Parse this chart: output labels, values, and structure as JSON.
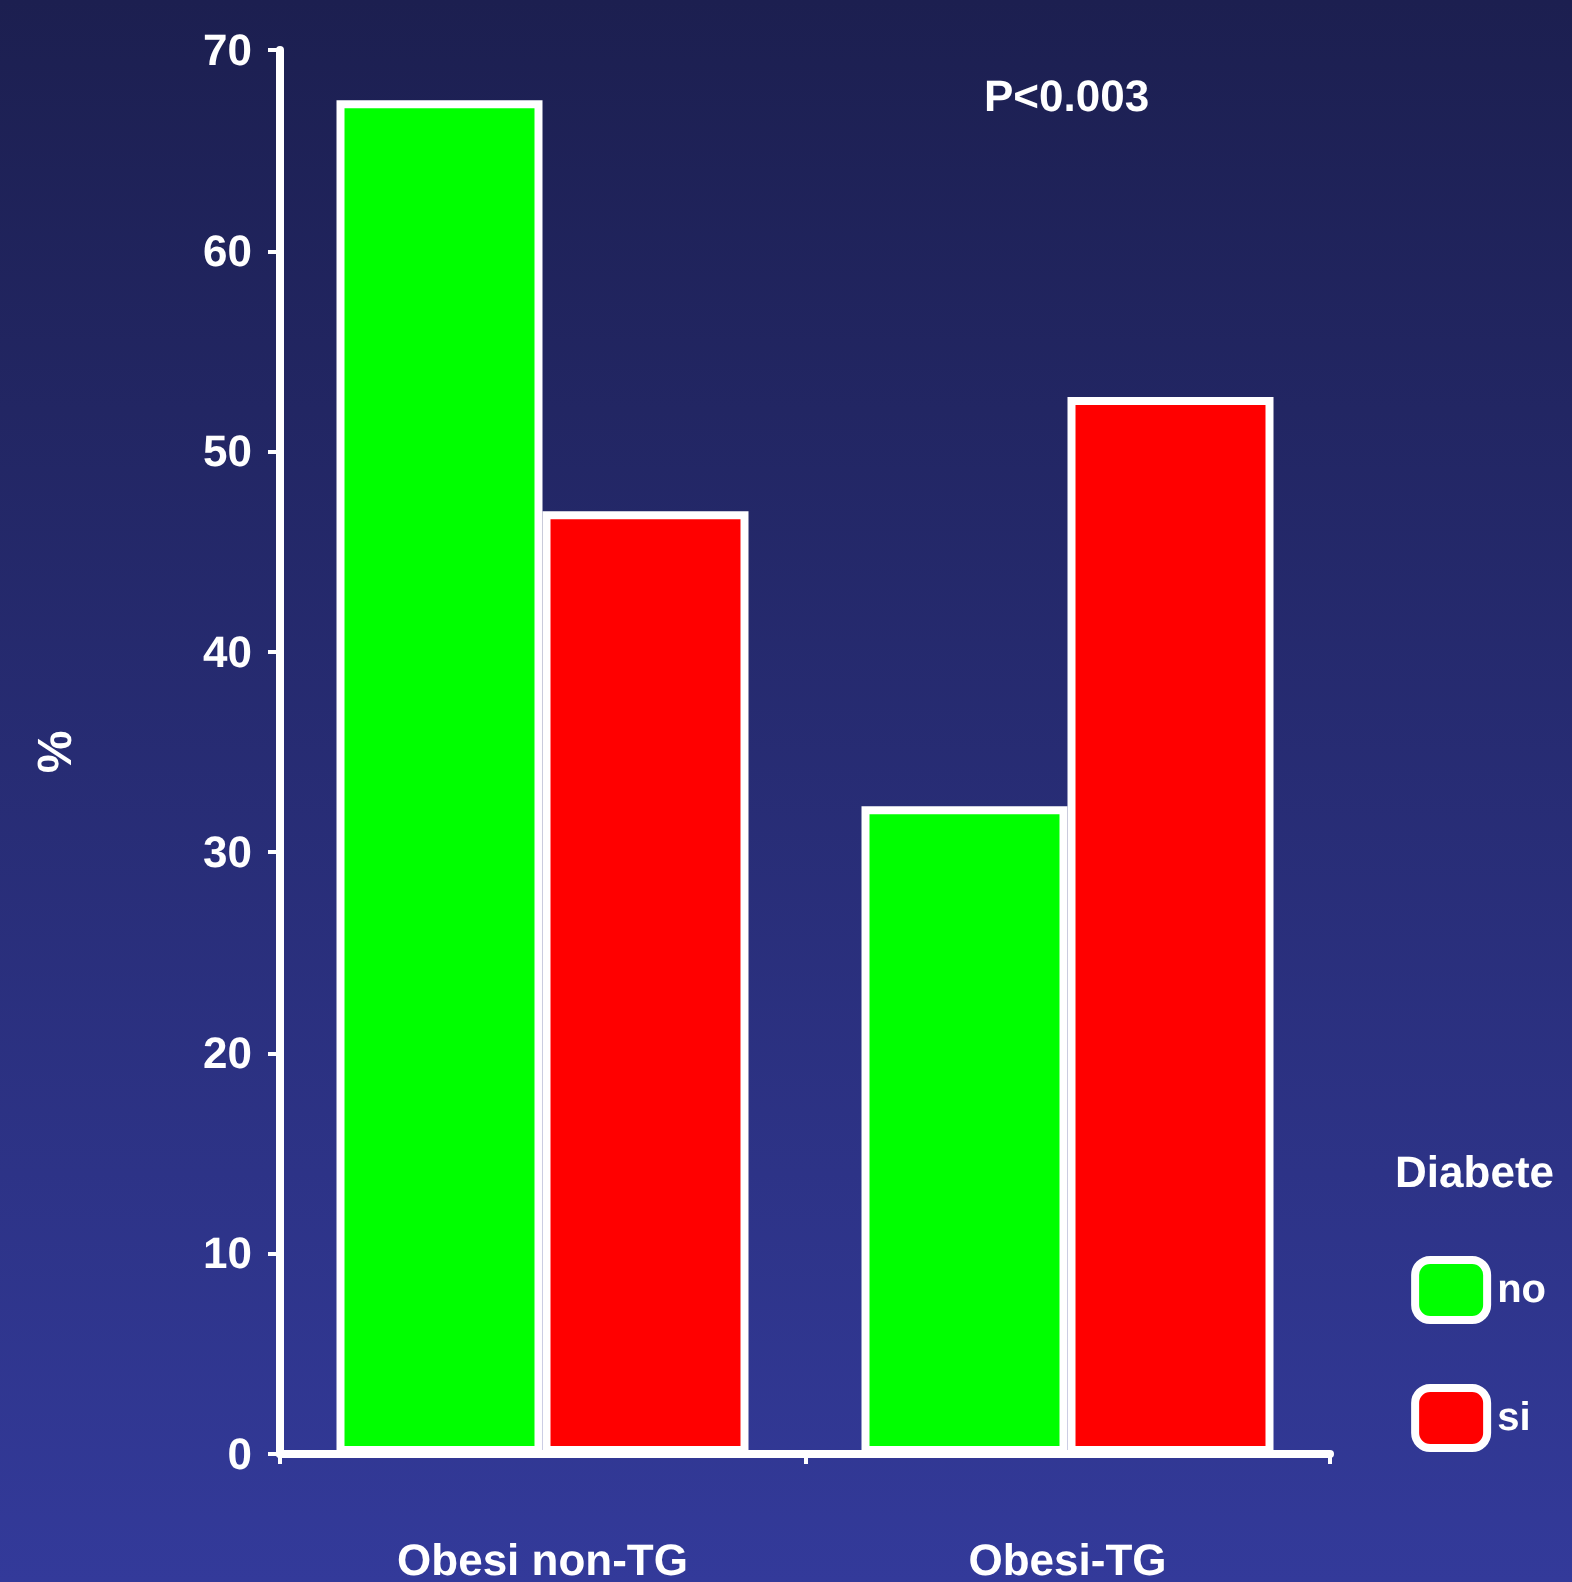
{
  "chart_data": {
    "type": "bar",
    "ylabel": "%",
    "legend_title": "Diabete",
    "annotations": [
      "P<0.003"
    ],
    "categories": [
      "Obesi non-TG",
      "Obesi-TG"
    ],
    "series": [
      {
        "name": "no",
        "color": "#00ff00",
        "values": [
          67.5,
          32.3
        ]
      },
      {
        "name": "si",
        "color": "#ff0000",
        "values": [
          47,
          52.7
        ]
      }
    ],
    "ylim": [
      0,
      70
    ],
    "yticks": [
      0,
      10,
      20,
      30,
      40,
      50,
      60,
      70
    ],
    "grid": false,
    "legend": "bottom right"
  }
}
